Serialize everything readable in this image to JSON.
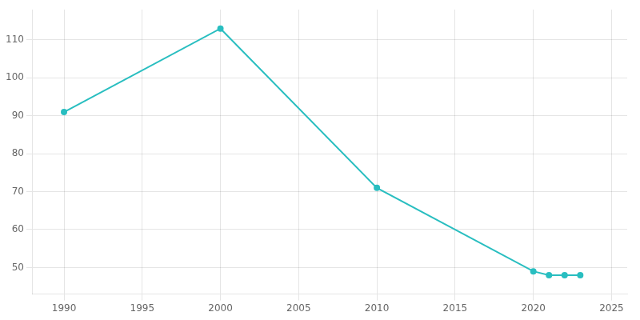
{
  "chart_data": {
    "type": "line",
    "x": [
      1990,
      2000,
      2010,
      2020,
      2021,
      2022,
      2023
    ],
    "values": [
      91,
      113,
      71,
      49,
      48,
      48,
      48
    ],
    "color": "#29bec0",
    "marker": "circle",
    "xlim": [
      1988,
      2026
    ],
    "ylim": [
      43,
      118
    ],
    "xticks": [
      1990,
      1995,
      2000,
      2005,
      2010,
      2015,
      2020,
      2025
    ],
    "yticks": [
      50,
      60,
      70,
      80,
      90,
      100,
      110
    ],
    "grid": true
  }
}
